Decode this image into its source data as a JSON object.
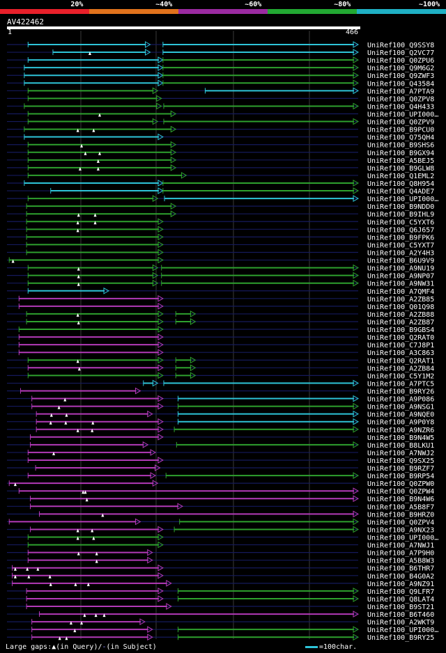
{
  "legend": {
    "segments": [
      {
        "label": "20%",
        "color": "#e8202a"
      },
      {
        "label": "~40%",
        "color": "#e0721c"
      },
      {
        "label": "~60%",
        "color": "#9a2aa0"
      },
      {
        "label": "~80%",
        "color": "#22a832"
      },
      {
        "label": "~100%",
        "color": "#1fb0c4"
      }
    ]
  },
  "query": {
    "id": "AV422462",
    "start": "1",
    "end": "466",
    "length": 466
  },
  "colors": {
    "magenta": "#b33ab8",
    "green": "#2ea12e",
    "cyan": "#2ec4d8",
    "navy": "#151a5c",
    "grid": "#3a3a3a"
  },
  "hits": [
    {
      "name": "UniRef100_Q9SSY8",
      "segs": [
        [
          28,
          190,
          "c"
        ],
        [
          207,
          466,
          "c"
        ]
      ],
      "marks": []
    },
    {
      "name": "UniRef100_Q2VC77",
      "segs": [
        [
          61,
          190,
          "c"
        ],
        [
          207,
          466,
          "c"
        ]
      ],
      "marks": [
        110
      ]
    },
    {
      "name": "UniRef100_Q0ZPU6",
      "segs": [
        [
          28,
          207,
          "c"
        ],
        [
          207,
          466,
          "g"
        ]
      ],
      "marks": []
    },
    {
      "name": "UniRef100_Q9M6G2",
      "segs": [
        [
          23,
          207,
          "c"
        ],
        [
          207,
          466,
          "g"
        ]
      ],
      "marks": []
    },
    {
      "name": "UniRef100_Q9ZWF3",
      "segs": [
        [
          23,
          207,
          "c"
        ],
        [
          207,
          466,
          "g"
        ]
      ],
      "marks": []
    },
    {
      "name": "UniRef100_Q43584",
      "segs": [
        [
          23,
          207,
          "c"
        ],
        [
          207,
          466,
          "g"
        ]
      ],
      "marks": []
    },
    {
      "name": "UniRef100_A7PTA9",
      "segs": [
        [
          28,
          200,
          "g"
        ],
        [
          263,
          466,
          "c"
        ]
      ],
      "marks": []
    },
    {
      "name": "UniRef100_Q0ZPV8",
      "segs": [
        [
          28,
          205,
          "g"
        ]
      ],
      "marks": []
    },
    {
      "name": "UniRef100_Q4H433",
      "segs": [
        [
          23,
          205,
          "g"
        ],
        [
          208,
          466,
          "g"
        ]
      ],
      "marks": []
    },
    {
      "name": "UniRef100_UPI000…",
      "segs": [
        [
          28,
          224,
          "g"
        ]
      ],
      "marks": [
        123
      ]
    },
    {
      "name": "UniRef100_Q0ZPV9",
      "segs": [
        [
          28,
          200,
          "g"
        ],
        [
          208,
          466,
          "g"
        ]
      ],
      "marks": []
    },
    {
      "name": "UniRef100_B9PCU0",
      "segs": [
        [
          23,
          224,
          "g"
        ]
      ],
      "marks": [
        94,
        115
      ]
    },
    {
      "name": "UniRef100_Q75QH4",
      "segs": [
        [
          23,
          207,
          "c"
        ]
      ],
      "marks": []
    },
    {
      "name": "UniRef100_B9SHS6",
      "segs": [
        [
          28,
          224,
          "g"
        ]
      ],
      "marks": [
        99
      ]
    },
    {
      "name": "UniRef100_B9GX94",
      "segs": [
        [
          28,
          224,
          "g"
        ]
      ],
      "marks": [
        104,
        123
      ]
    },
    {
      "name": "UniRef100_A5BEJ5",
      "segs": [
        [
          28,
          224,
          "g"
        ]
      ],
      "marks": [
        121
      ]
    },
    {
      "name": "UniRef100_B9GLW8",
      "segs": [
        [
          28,
          224,
          "g"
        ]
      ],
      "marks": [
        97,
        121
      ]
    },
    {
      "name": "UniRef100_Q1EML2",
      "segs": [
        [
          28,
          238,
          "g"
        ]
      ],
      "marks": []
    },
    {
      "name": "UniRef100_Q8H954",
      "segs": [
        [
          23,
          207,
          "c"
        ],
        [
          207,
          466,
          "g"
        ]
      ],
      "marks": []
    },
    {
      "name": "UniRef100_Q4ADE7",
      "segs": [
        [
          58,
          207,
          "c"
        ],
        [
          207,
          466,
          "g"
        ]
      ],
      "marks": []
    },
    {
      "name": "UniRef100_UPI000…",
      "segs": [
        [
          28,
          200,
          "g"
        ],
        [
          209,
          466,
          "c"
        ]
      ],
      "marks": []
    },
    {
      "name": "UniRef100_B9NDD0",
      "segs": [
        [
          26,
          224,
          "g"
        ]
      ],
      "marks": []
    },
    {
      "name": "UniRef100_B9IHL9",
      "segs": [
        [
          26,
          224,
          "g"
        ]
      ],
      "marks": [
        95,
        117
      ]
    },
    {
      "name": "UniRef100_C5YXT6",
      "segs": [
        [
          26,
          207,
          "g"
        ]
      ],
      "marks": [
        94,
        117
      ]
    },
    {
      "name": "UniRef100_Q6J657",
      "segs": [
        [
          26,
          207,
          "g"
        ]
      ],
      "marks": [
        94
      ]
    },
    {
      "name": "UniRef100_B9FPK6",
      "segs": [
        [
          26,
          207,
          "g"
        ]
      ],
      "marks": []
    },
    {
      "name": "UniRef100_C5YXT7",
      "segs": [
        [
          26,
          207,
          "g"
        ]
      ],
      "marks": []
    },
    {
      "name": "UniRef100_A2Y4H3",
      "segs": [
        [
          26,
          207,
          "g"
        ]
      ],
      "marks": []
    },
    {
      "name": "UniRef100_B6U9V9",
      "segs": [
        [
          3,
          207,
          "g"
        ]
      ],
      "marks": [
        8
      ]
    },
    {
      "name": "UniRef100_A9NU19",
      "segs": [
        [
          28,
          200,
          "g"
        ],
        [
          205,
          466,
          "g"
        ]
      ],
      "marks": [
        95
      ]
    },
    {
      "name": "UniRef100_A9NP07",
      "segs": [
        [
          28,
          200,
          "g"
        ],
        [
          205,
          466,
          "g"
        ]
      ],
      "marks": [
        95
      ]
    },
    {
      "name": "UniRef100_A9NW31",
      "segs": [
        [
          28,
          200,
          "g"
        ],
        [
          205,
          466,
          "g"
        ]
      ],
      "marks": [
        95
      ]
    },
    {
      "name": "UniRef100_A7QMF4",
      "segs": [
        [
          28,
          135,
          "c"
        ]
      ],
      "marks": []
    },
    {
      "name": "UniRef100_A2ZB85",
      "segs": [
        [
          16,
          207,
          "m"
        ]
      ],
      "marks": []
    },
    {
      "name": "UniRef100_Q01Q98",
      "segs": [
        [
          16,
          207,
          "m"
        ]
      ],
      "marks": []
    },
    {
      "name": "UniRef100_A2ZB88",
      "segs": [
        [
          26,
          207,
          "g"
        ],
        [
          224,
          250,
          "g"
        ]
      ],
      "marks": [
        94
      ]
    },
    {
      "name": "UniRef100_A2ZB87",
      "segs": [
        [
          26,
          207,
          "g"
        ],
        [
          224,
          250,
          "g"
        ]
      ],
      "marks": [
        95
      ]
    },
    {
      "name": "UniRef100_B9GBS4",
      "segs": [
        [
          16,
          207,
          "g"
        ]
      ],
      "marks": []
    },
    {
      "name": "UniRef100_Q2RAT0",
      "segs": [
        [
          16,
          207,
          "m"
        ]
      ],
      "marks": []
    },
    {
      "name": "UniRef100_C7J8P1",
      "segs": [
        [
          16,
          207,
          "m"
        ]
      ],
      "marks": []
    },
    {
      "name": "UniRef100_A3C863",
      "segs": [
        [
          16,
          207,
          "m"
        ]
      ],
      "marks": []
    },
    {
      "name": "UniRef100_Q2RAT1",
      "segs": [
        [
          28,
          207,
          "g"
        ],
        [
          224,
          250,
          "g"
        ]
      ],
      "marks": [
        94
      ]
    },
    {
      "name": "UniRef100_A2ZB84",
      "segs": [
        [
          28,
          207,
          "m"
        ],
        [
          224,
          250,
          "g"
        ]
      ],
      "marks": [
        96
      ]
    },
    {
      "name": "UniRef100_C5Y1M2",
      "segs": [
        [
          28,
          207,
          "g"
        ],
        [
          224,
          250,
          "g"
        ]
      ],
      "marks": []
    },
    {
      "name": "UniRef100_A7PTC5",
      "segs": [
        [
          181,
          200,
          "c"
        ],
        [
          208,
          466,
          "c"
        ]
      ],
      "marks": []
    },
    {
      "name": "UniRef100_B9RY26",
      "segs": [
        [
          18,
          177,
          "m"
        ]
      ],
      "marks": []
    },
    {
      "name": "UniRef100_A9P086",
      "segs": [
        [
          33,
          207,
          "m"
        ],
        [
          227,
          466,
          "c"
        ]
      ],
      "marks": [
        77
      ]
    },
    {
      "name": "UniRef100_A9NSG1",
      "segs": [
        [
          33,
          207,
          "m"
        ],
        [
          227,
          466,
          "g"
        ]
      ],
      "marks": [
        69
      ]
    },
    {
      "name": "UniRef100_A9NQE0",
      "segs": [
        [
          39,
          193,
          "m"
        ],
        [
          227,
          466,
          "c"
        ]
      ],
      "marks": [
        59,
        79
      ]
    },
    {
      "name": "UniRef100_A9P0Y8",
      "segs": [
        [
          39,
          207,
          "m"
        ],
        [
          227,
          466,
          "c"
        ]
      ],
      "marks": [
        58,
        78,
        114
      ]
    },
    {
      "name": "UniRef100_A9NZR6",
      "segs": [
        [
          39,
          207,
          "m"
        ],
        [
          222,
          466,
          "g"
        ]
      ],
      "marks": [
        94,
        113
      ]
    },
    {
      "name": "UniRef100_B9N4W5",
      "segs": [
        [
          31,
          207,
          "m"
        ]
      ],
      "marks": []
    },
    {
      "name": "UniRef100_B8LKU1",
      "segs": [
        [
          31,
          187,
          "m"
        ],
        [
          225,
          466,
          "g"
        ]
      ],
      "marks": []
    },
    {
      "name": "UniRef100_A7NWJ2",
      "segs": [
        [
          28,
          197,
          "m"
        ]
      ],
      "marks": [
        62
      ]
    },
    {
      "name": "UniRef100_Q9SX25",
      "segs": [
        [
          28,
          207,
          "m"
        ]
      ],
      "marks": []
    },
    {
      "name": "UniRef100_B9RZF7",
      "segs": [
        [
          38,
          203,
          "m"
        ]
      ],
      "marks": []
    },
    {
      "name": "UniRef100_B9RP54",
      "segs": [
        [
          28,
          197,
          "m"
        ],
        [
          211,
          466,
          "g"
        ]
      ],
      "marks": []
    },
    {
      "name": "UniRef100_Q0ZPW0",
      "segs": [
        [
          3,
          200,
          "m"
        ]
      ],
      "marks": [
        11
      ]
    },
    {
      "name": "UniRef100_Q0ZPW4",
      "segs": [
        [
          16,
          466,
          "m"
        ]
      ],
      "marks": [
        101,
        104
      ]
    },
    {
      "name": "UniRef100_B9N4W6",
      "segs": [
        [
          31,
          466,
          "m"
        ]
      ],
      "marks": [
        106
      ]
    },
    {
      "name": "UniRef100_A5B8F7",
      "segs": [
        [
          31,
          233,
          "m"
        ]
      ],
      "marks": []
    },
    {
      "name": "UniRef100_B9HRZ0",
      "segs": [
        [
          43,
          466,
          "m"
        ]
      ],
      "marks": [
        127
      ]
    },
    {
      "name": "UniRef100_Q0ZPV4",
      "segs": [
        [
          3,
          177,
          "m"
        ],
        [
          229,
          466,
          "g"
        ]
      ],
      "marks": []
    },
    {
      "name": "UniRef100_A9NX23",
      "segs": [
        [
          31,
          207,
          "m"
        ],
        [
          222,
          466,
          "g"
        ]
      ],
      "marks": [
        94,
        113
      ]
    },
    {
      "name": "UniRef100_UPI000…",
      "segs": [
        [
          28,
          207,
          "g"
        ]
      ],
      "marks": [
        94,
        115
      ]
    },
    {
      "name": "UniRef100_A7NWJ1",
      "segs": [
        [
          28,
          207,
          "g"
        ]
      ],
      "marks": []
    },
    {
      "name": "UniRef100_A7P9H0",
      "segs": [
        [
          28,
          193,
          "m"
        ]
      ],
      "marks": [
        95,
        119
      ]
    },
    {
      "name": "UniRef100_A5B8W3",
      "segs": [
        [
          28,
          193,
          "m"
        ]
      ],
      "marks": [
        119
      ]
    },
    {
      "name": "UniRef100_B6THR7",
      "segs": [
        [
          7,
          207,
          "m"
        ]
      ],
      "marks": [
        11,
        27,
        41
      ]
    },
    {
      "name": "UniRef100_B4G0A2",
      "segs": [
        [
          7,
          207,
          "m"
        ]
      ],
      "marks": [
        11,
        29,
        57
      ]
    },
    {
      "name": "UniRef100_A9NZ91",
      "segs": [
        [
          7,
          218,
          "m"
        ]
      ],
      "marks": [
        58,
        91,
        108
      ]
    },
    {
      "name": "UniRef100_Q9LFR7",
      "segs": [
        [
          26,
          207,
          "m"
        ],
        [
          227,
          466,
          "g"
        ]
      ],
      "marks": []
    },
    {
      "name": "UniRef100_Q8LAT4",
      "segs": [
        [
          26,
          207,
          "m"
        ],
        [
          227,
          466,
          "g"
        ]
      ],
      "marks": []
    },
    {
      "name": "UniRef100_B9ST21",
      "segs": [
        [
          26,
          218,
          "m"
        ]
      ],
      "marks": []
    },
    {
      "name": "UniRef100_B6T460",
      "segs": [
        [
          43,
          466,
          "m"
        ]
      ],
      "marks": [
        103,
        118,
        129
      ]
    },
    {
      "name": "UniRef100_A2WKT9",
      "segs": [
        [
          33,
          183,
          "m"
        ]
      ],
      "marks": [
        85,
        99
      ]
    },
    {
      "name": "UniRef100_UPI000…",
      "segs": [
        [
          33,
          193,
          "m"
        ],
        [
          227,
          466,
          "g"
        ]
      ],
      "marks": [
        90
      ]
    },
    {
      "name": "UniRef100_B9RY25",
      "segs": [
        [
          33,
          193,
          "m"
        ],
        [
          227,
          466,
          "g"
        ]
      ],
      "marks": [
        70,
        79
      ]
    }
  ],
  "footer": {
    "gaps_prefix": "Large gaps:",
    "gaps_query": "(in Query)/",
    "gaps_subject": "(in Subject)",
    "scale_label": "=100char."
  }
}
